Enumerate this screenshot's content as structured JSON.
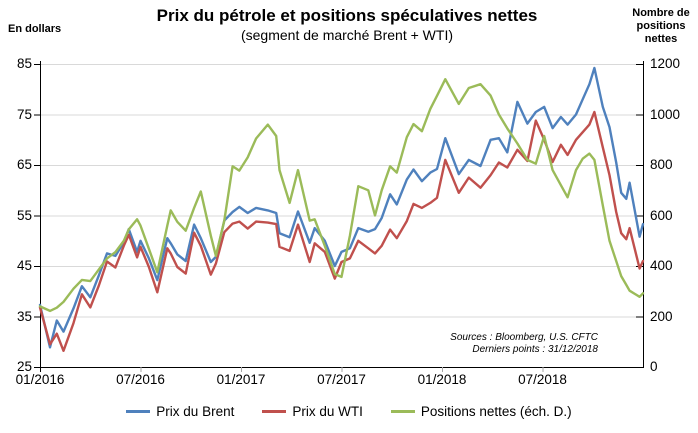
{
  "title": "Prix du pétrole et positions spéculatives nettes",
  "subtitle": "(segment de marché Brent + WTI)",
  "left_axis": {
    "title": "En dollars",
    "ticks": [
      85,
      75,
      65,
      55,
      45,
      35,
      25
    ]
  },
  "right_axis": {
    "title": "Nombre de positions nettes",
    "ticks": [
      1200,
      1000,
      800,
      600,
      400,
      200,
      0
    ]
  },
  "x_axis": {
    "tick_labels": [
      "01/2016",
      "07/2016",
      "01/2017",
      "07/2017",
      "01/2018",
      "07/2018"
    ],
    "tick_months": [
      0,
      6,
      12,
      18,
      24,
      30
    ]
  },
  "source": {
    "line1": "Sources : Bloomberg, U.S. CFTC",
    "line2": "Derniers points : 31/12/2018"
  },
  "colors": {
    "brent": "#4F81BD",
    "wti": "#C0504D",
    "positions": "#9BBB59",
    "grid": "#D9D9D9",
    "axis": "#000000",
    "minor_tick": "#A6A6A6"
  },
  "chart_data": {
    "type": "line",
    "title": "Prix du pétrole et positions spéculatives nettes",
    "subtitle": "(segment de marché Brent + WTI)",
    "xlabel": "",
    "ylabel_left": "En dollars",
    "ylabel_right": "Nombre de positions nettes",
    "x_unit": "months since 2016-01",
    "xlim": [
      0,
      36
    ],
    "ylim_left": [
      25,
      85
    ],
    "ylim_right": [
      0,
      1200
    ],
    "x_tick_months": [
      0,
      6,
      12,
      18,
      24,
      30
    ],
    "x_tick_labels": [
      "01/2016",
      "07/2016",
      "01/2017",
      "07/2017",
      "01/2018",
      "07/2018"
    ],
    "grid": "horizontal",
    "legend_position": "bottom",
    "x": [
      0.0,
      0.6,
      1.0,
      1.4,
      2.0,
      2.5,
      3.0,
      3.5,
      4.0,
      4.5,
      5.0,
      5.3,
      5.8,
      6.0,
      6.5,
      7.0,
      7.6,
      7.8,
      8.2,
      8.7,
      9.2,
      9.6,
      10.2,
      10.5,
      11.0,
      11.5,
      11.9,
      12.4,
      12.9,
      13.6,
      14.1,
      14.3,
      14.9,
      15.4,
      16.1,
      16.4,
      17.0,
      17.6,
      18.0,
      18.5,
      19.0,
      19.6,
      20.0,
      20.4,
      20.9,
      21.3,
      21.9,
      22.3,
      22.8,
      23.3,
      23.7,
      24.2,
      25.0,
      25.6,
      26.3,
      26.9,
      27.4,
      27.9,
      28.5,
      29.1,
      29.6,
      30.1,
      30.6,
      31.1,
      31.5,
      32.0,
      32.4,
      32.8,
      33.1,
      33.6,
      34.0,
      34.4,
      34.7,
      35.0,
      35.2,
      35.8,
      36.0
    ],
    "series": [
      {
        "name": "Prix du Brent",
        "axis": "left",
        "color": "#4F81BD",
        "values": [
          37.3,
          28.9,
          34.2,
          32.0,
          36.6,
          41.0,
          38.8,
          43.0,
          47.5,
          47.0,
          49.7,
          52.3,
          47.8,
          50.0,
          46.5,
          42.2,
          50.5,
          49.5,
          47.3,
          46.0,
          53.2,
          50.5,
          45.8,
          46.8,
          54.0,
          55.7,
          56.7,
          55.5,
          56.5,
          56.0,
          55.5,
          51.5,
          50.7,
          55.8,
          49.6,
          52.5,
          50.0,
          45.0,
          47.8,
          48.5,
          52.5,
          51.8,
          52.3,
          54.5,
          59.2,
          57.2,
          62.1,
          64.1,
          61.8,
          63.5,
          64.2,
          70.3,
          63.2,
          66.0,
          64.8,
          70.0,
          70.3,
          67.5,
          77.5,
          73.2,
          75.5,
          76.5,
          72.3,
          74.5,
          73.0,
          75.0,
          78.0,
          81.0,
          84.2,
          76.5,
          72.5,
          65.5,
          59.5,
          58.3,
          61.5,
          50.8,
          53.3
        ]
      },
      {
        "name": "Prix du WTI",
        "axis": "left",
        "color": "#C0504D",
        "values": [
          36.8,
          29.5,
          31.6,
          28.2,
          33.7,
          39.4,
          36.8,
          41.0,
          45.9,
          44.7,
          49.0,
          51.2,
          46.7,
          48.8,
          44.8,
          39.8,
          48.5,
          47.5,
          44.8,
          43.5,
          51.6,
          49.0,
          43.3,
          45.5,
          51.7,
          53.4,
          53.8,
          52.4,
          53.8,
          53.6,
          53.3,
          48.8,
          48.0,
          53.2,
          45.8,
          49.5,
          47.8,
          42.5,
          45.8,
          46.5,
          50.0,
          48.5,
          47.5,
          49.0,
          52.2,
          50.5,
          53.9,
          57.3,
          56.5,
          57.5,
          58.5,
          66.0,
          59.5,
          62.5,
          60.5,
          63.0,
          65.5,
          64.5,
          68.0,
          65.8,
          73.8,
          70.0,
          65.6,
          69.0,
          67.0,
          70.0,
          71.5,
          73.0,
          75.5,
          68.5,
          63.0,
          55.7,
          51.5,
          50.3,
          52.5,
          44.5,
          46.0
        ]
      },
      {
        "name": "Positions nettes (éch. D.)",
        "axis": "right",
        "color": "#9BBB59",
        "values": [
          240,
          222,
          235,
          258,
          310,
          345,
          340,
          385,
          430,
          455,
          500,
          545,
          585,
          560,
          468,
          375,
          560,
          620,
          575,
          540,
          630,
          695,
          520,
          440,
          580,
          795,
          778,
          830,
          905,
          960,
          915,
          780,
          650,
          780,
          580,
          585,
          480,
          368,
          357,
          520,
          716,
          700,
          600,
          700,
          795,
          770,
          910,
          962,
          934,
          1022,
          1074,
          1140,
          1042,
          1105,
          1120,
          1075,
          1000,
          945,
          885,
          820,
          805,
          915,
          780,
          720,
          672,
          780,
          825,
          845,
          820,
          640,
          500,
          420,
          360,
          325,
          302,
          278,
          292
        ]
      }
    ]
  }
}
